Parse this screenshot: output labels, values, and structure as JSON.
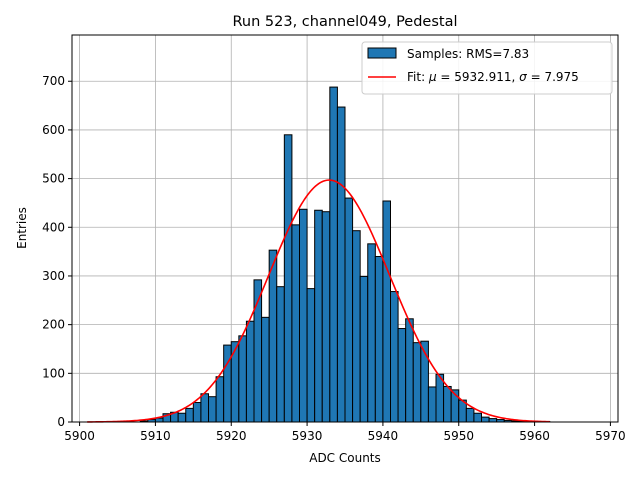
{
  "chart_data": {
    "type": "bar",
    "title": "Run 523, channel049, Pedestal",
    "xlabel": "ADC Counts",
    "ylabel": "Entries",
    "xlim": [
      5899,
      5971
    ],
    "ylim": [
      0,
      795
    ],
    "xticks": [
      5900,
      5910,
      5920,
      5930,
      5940,
      5950,
      5960,
      5970
    ],
    "yticks": [
      0,
      100,
      200,
      300,
      400,
      500,
      600,
      700
    ],
    "grid": true,
    "legend_position": "top-right",
    "histogram": {
      "name": "Samples: RMS=7.83",
      "bin_width": 1,
      "bin_starts": [
        5908,
        5909,
        5910,
        5911,
        5912,
        5913,
        5914,
        5915,
        5916,
        5917,
        5918,
        5919,
        5920,
        5921,
        5922,
        5923,
        5924,
        5925,
        5926,
        5927,
        5928,
        5929,
        5930,
        5931,
        5932,
        5933,
        5934,
        5935,
        5936,
        5937,
        5938,
        5939,
        5940,
        5941,
        5942,
        5943,
        5944,
        5945,
        5946,
        5947,
        5948,
        5949,
        5950,
        5951,
        5952,
        5953,
        5954,
        5955,
        5956,
        5957,
        5958,
        5959,
        5960,
        5961
      ],
      "values": [
        2,
        5,
        8,
        17,
        20,
        18,
        28,
        40,
        58,
        52,
        93,
        158,
        165,
        177,
        207,
        292,
        215,
        353,
        278,
        590,
        405,
        437,
        274,
        435,
        432,
        688,
        647,
        460,
        393,
        299,
        366,
        340,
        454,
        268,
        192,
        212,
        163,
        166,
        72,
        98,
        73,
        66,
        45,
        28,
        18,
        10,
        7,
        5,
        3,
        2,
        1,
        1,
        1,
        1
      ],
      "fill_color": "#1f77b4",
      "edge_color": "#000000"
    },
    "fit": {
      "name": "Fit: $\\mu$ = 5932.911, $\\sigma$ = 7.975",
      "legend_prefix": "Fit: ",
      "legend_mu_symbol": "μ",
      "legend_mu_text": " = 5932.911, ",
      "legend_sigma_symbol": "σ",
      "legend_sigma_text": " = 7.975",
      "mu": 5932.911,
      "sigma": 7.975,
      "amplitude": 497,
      "x_range": [
        5901,
        5962
      ],
      "color": "#ff0000"
    }
  }
}
